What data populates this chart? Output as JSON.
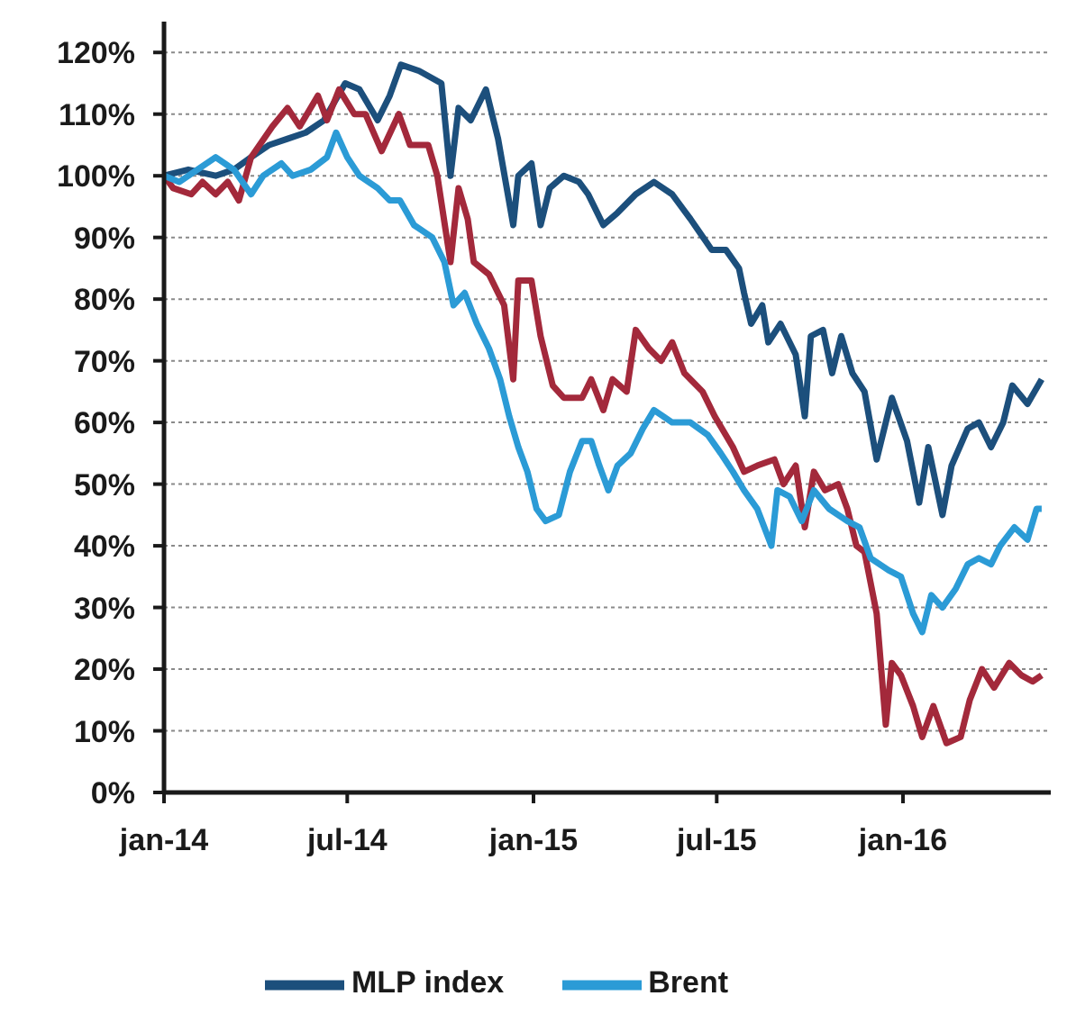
{
  "chart_data": {
    "type": "line",
    "xlim": [
      "2014-01-01",
      "2016-05-26"
    ],
    "xticks": [
      {
        "value": "2014-01-01",
        "label": "jan-14"
      },
      {
        "value": "2014-07-01",
        "label": "jul-14"
      },
      {
        "value": "2015-01-01",
        "label": "jan-15"
      },
      {
        "value": "2015-07-01",
        "label": "jul-15"
      },
      {
        "value": "2016-01-01",
        "label": "jan-16"
      }
    ],
    "ylim": [
      0,
      125
    ],
    "yticks": [
      {
        "value": 0,
        "label": "0%"
      },
      {
        "value": 10,
        "label": "10%"
      },
      {
        "value": 20,
        "label": "20%"
      },
      {
        "value": 30,
        "label": "30%"
      },
      {
        "value": 40,
        "label": "40%"
      },
      {
        "value": 50,
        "label": "50%"
      },
      {
        "value": 60,
        "label": "60%"
      },
      {
        "value": 70,
        "label": "70%"
      },
      {
        "value": 80,
        "label": "80%"
      },
      {
        "value": 90,
        "label": "90%"
      },
      {
        "value": 100,
        "label": "100%"
      },
      {
        "value": 110,
        "label": "110%"
      },
      {
        "value": 120,
        "label": "120%"
      }
    ],
    "grid": "y",
    "legend": "bottom",
    "series": [
      {
        "name": "MLP index",
        "color": "#1c4f7c",
        "x": [
          "2014-01-01",
          "2014-01-25",
          "2014-02-21",
          "2014-03-11",
          "2014-03-28",
          "2014-04-15",
          "2014-05-03",
          "2014-05-21",
          "2014-06-08",
          "2014-06-29",
          "2014-07-13",
          "2014-07-31",
          "2014-08-12",
          "2014-08-23",
          "2014-09-10",
          "2014-10-02",
          "2014-10-11",
          "2014-10-19",
          "2014-10-31",
          "2014-11-15",
          "2014-11-27",
          "2014-12-12",
          "2014-12-17",
          "2014-12-30",
          "2015-01-08",
          "2015-01-17",
          "2015-01-31",
          "2015-02-15",
          "2015-02-24",
          "2015-03-11",
          "2015-03-25",
          "2015-04-12",
          "2015-04-30",
          "2015-05-18",
          "2015-06-05",
          "2015-06-26",
          "2015-07-10",
          "2015-07-23",
          "2015-07-28",
          "2015-08-04",
          "2015-08-15",
          "2015-08-21",
          "2015-09-02",
          "2015-09-17",
          "2015-09-26",
          "2015-10-02",
          "2015-10-14",
          "2015-10-23",
          "2015-11-01",
          "2015-11-12",
          "2015-11-24",
          "2015-12-06",
          "2015-12-21",
          "2016-01-05",
          "2016-01-17",
          "2016-01-26",
          "2016-02-09",
          "2016-02-18",
          "2016-03-05",
          "2016-03-16",
          "2016-03-28",
          "2016-04-09",
          "2016-04-18",
          "2016-05-03",
          "2016-05-17"
        ],
        "values": [
          100,
          101,
          100,
          101,
          103,
          105,
          106,
          107,
          109,
          115,
          114,
          109,
          113,
          118,
          117,
          115,
          100,
          111,
          109,
          114,
          106,
          92,
          100,
          102,
          92,
          98,
          100,
          99,
          97,
          92,
          94,
          97,
          99,
          97,
          93,
          88,
          88,
          85,
          81,
          76,
          79,
          73,
          76,
          71,
          61,
          74,
          75,
          68,
          74,
          68,
          65,
          54,
          64,
          57,
          47,
          56,
          45,
          53,
          59,
          60,
          56,
          60,
          66,
          63,
          67
        ]
      },
      {
        "color": "#a3293b",
        "x": [
          "2014-01-01",
          "2014-01-10",
          "2014-01-28",
          "2014-02-08",
          "2014-02-21",
          "2014-03-05",
          "2014-03-16",
          "2014-03-28",
          "2014-04-18",
          "2014-05-03",
          "2014-05-15",
          "2014-06-02",
          "2014-06-11",
          "2014-06-23",
          "2014-07-08",
          "2014-07-19",
          "2014-08-04",
          "2014-08-21",
          "2014-09-01",
          "2014-09-19",
          "2014-09-28",
          "2014-10-11",
          "2014-10-19",
          "2014-10-28",
          "2014-11-03",
          "2014-11-18",
          "2014-12-03",
          "2014-12-12",
          "2014-12-17",
          "2014-12-30",
          "2015-01-08",
          "2015-01-20",
          "2015-01-31",
          "2015-02-18",
          "2015-02-27",
          "2015-03-11",
          "2015-03-20",
          "2015-04-03",
          "2015-04-12",
          "2015-04-25",
          "2015-05-07",
          "2015-05-18",
          "2015-05-30",
          "2015-06-17",
          "2015-06-29",
          "2015-07-17",
          "2015-07-28",
          "2015-08-10",
          "2015-08-27",
          "2015-09-05",
          "2015-09-17",
          "2015-09-26",
          "2015-10-05",
          "2015-10-16",
          "2015-10-29",
          "2015-11-07",
          "2015-11-16",
          "2015-11-24",
          "2015-12-06",
          "2015-12-15",
          "2015-12-21",
          "2015-12-30",
          "2016-01-11",
          "2016-01-20",
          "2016-01-31",
          "2016-02-13",
          "2016-02-27",
          "2016-03-07",
          "2016-03-19",
          "2016-03-31",
          "2016-04-15",
          "2016-04-27",
          "2016-05-08",
          "2016-05-17"
        ],
        "values": [
          100,
          98,
          97,
          99,
          97,
          99,
          96,
          103,
          108,
          111,
          108,
          113,
          109,
          114,
          110,
          110,
          104,
          110,
          105,
          105,
          100,
          86,
          98,
          93,
          86,
          84,
          79,
          67,
          83,
          83,
          74,
          66,
          64,
          64,
          67,
          62,
          67,
          65,
          75,
          72,
          70,
          73,
          68,
          65,
          61,
          56,
          52,
          53,
          54,
          50,
          53,
          43,
          52,
          49,
          50,
          46,
          40,
          39,
          29,
          11,
          21,
          19,
          14,
          9,
          14,
          8,
          9,
          15,
          20,
          17,
          21,
          19,
          18,
          19
        ]
      },
      {
        "name": "Brent",
        "color": "#2b9bd6",
        "x": [
          "2014-01-01",
          "2014-01-16",
          "2014-02-03",
          "2014-02-21",
          "2014-03-11",
          "2014-03-28",
          "2014-04-09",
          "2014-04-27",
          "2014-05-08",
          "2014-05-26",
          "2014-06-11",
          "2014-06-20",
          "2014-07-01",
          "2014-07-13",
          "2014-07-31",
          "2014-08-12",
          "2014-08-22",
          "2014-09-05",
          "2014-09-23",
          "2014-10-05",
          "2014-10-14",
          "2014-10-25",
          "2014-11-06",
          "2014-11-18",
          "2014-11-29",
          "2014-12-08",
          "2014-12-17",
          "2014-12-26",
          "2015-01-04",
          "2015-01-13",
          "2015-01-26",
          "2015-02-06",
          "2015-02-18",
          "2015-02-27",
          "2015-03-07",
          "2015-03-16",
          "2015-03-25",
          "2015-04-07",
          "2015-04-19",
          "2015-04-30",
          "2015-05-18",
          "2015-06-05",
          "2015-06-22",
          "2015-07-05",
          "2015-07-17",
          "2015-07-28",
          "2015-08-10",
          "2015-08-24",
          "2015-08-30",
          "2015-09-11",
          "2015-09-23",
          "2015-10-05",
          "2015-10-20",
          "2015-11-07",
          "2015-11-19",
          "2015-11-30",
          "2015-12-18",
          "2015-12-30",
          "2016-01-11",
          "2016-01-20",
          "2016-01-29",
          "2016-02-09",
          "2016-02-22",
          "2016-03-05",
          "2016-03-16",
          "2016-03-28",
          "2016-04-06",
          "2016-04-20",
          "2016-05-03",
          "2016-05-12",
          "2016-05-17"
        ],
        "values": [
          100,
          99,
          101,
          103,
          101,
          97,
          100,
          102,
          100,
          101,
          103,
          107,
          103,
          100,
          98,
          96,
          96,
          92,
          90,
          86,
          79,
          81,
          76,
          72,
          67,
          61,
          56,
          52,
          46,
          44,
          45,
          52,
          57,
          57,
          53,
          49,
          53,
          55,
          59,
          62,
          60,
          60,
          58,
          55,
          52,
          49,
          46,
          40,
          49,
          48,
          44,
          49,
          46,
          44,
          43,
          38,
          36,
          35,
          29,
          26,
          32,
          30,
          33,
          37,
          38,
          37,
          40,
          43,
          41,
          46,
          46
        ]
      }
    ]
  }
}
